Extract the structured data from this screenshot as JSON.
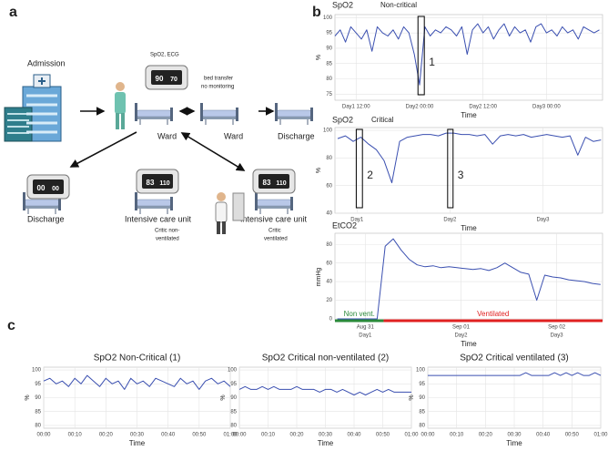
{
  "panel_labels": [
    "a",
    "b",
    "c"
  ],
  "diagram": {
    "admission": "Admission",
    "monitor_label": "SpO2, ECG",
    "transfer_note": [
      "bed transfer",
      "no monitoring"
    ],
    "ward": "Ward",
    "ward_transfer": "Ward",
    "discharge_right": "Discharge",
    "discharge_left": "Discharge",
    "icu_left": {
      "title": "Intensive care unit",
      "note": [
        "Critic non-",
        "ventilated"
      ]
    },
    "icu_right": {
      "title": "Intensive care unit",
      "note": [
        "Critic",
        "ventilated"
      ]
    },
    "monitors": [
      [
        "90",
        "70"
      ],
      [
        "00",
        "00"
      ],
      [
        "83",
        "110"
      ],
      [
        "83",
        "110"
      ]
    ]
  },
  "chart_data": [
    {
      "type": "line",
      "title": "SpO2",
      "subtitle": "Non-critical",
      "xlabel": "Time",
      "ylabel": "%",
      "color": "#3a4fb0",
      "grid": true,
      "x": [
        8,
        9,
        10,
        11,
        12,
        13,
        14,
        15,
        16,
        17,
        18,
        19,
        20,
        21,
        22,
        23,
        24,
        25,
        26,
        27,
        28,
        29,
        30,
        31,
        32,
        33,
        34,
        35,
        36,
        37,
        38,
        39,
        40,
        41,
        42,
        43,
        44,
        45,
        46,
        47,
        48,
        49,
        50,
        51,
        52,
        53,
        54,
        55,
        56,
        57,
        58
      ],
      "values": [
        94,
        96,
        92,
        97,
        95,
        93,
        96,
        89,
        97,
        95,
        94,
        96,
        93,
        97,
        95,
        88,
        78,
        97,
        94,
        96,
        95,
        97,
        96,
        94,
        97,
        88,
        96,
        98,
        95,
        97,
        93,
        96,
        98,
        94,
        97,
        95,
        96,
        92,
        97,
        98,
        95,
        96,
        94,
        97,
        95,
        96,
        93,
        97,
        96,
        95,
        96
      ],
      "xlim": [
        8,
        58.6
      ],
      "ylim": [
        73,
        101
      ],
      "yticks": [
        75,
        80,
        85,
        90,
        95,
        100
      ],
      "xticks": [
        {
          "value": 12,
          "label": "Day1 12:00"
        },
        {
          "value": 24,
          "label": "Day2 00:00"
        },
        {
          "value": 36,
          "label": "Day2 12:00"
        },
        {
          "value": 48,
          "label": "Day3 00:00"
        }
      ],
      "annotations": [
        {
          "text": "1",
          "x0": 23.7,
          "x1": 24.9
        }
      ]
    },
    {
      "type": "line",
      "title": "SpO2",
      "subtitle": "Critical",
      "xlabel": "Time",
      "ylabel": "%",
      "color": "#3a4fb0",
      "grid": true,
      "x": [
        -5,
        -3,
        -1,
        1,
        3,
        5,
        7,
        9,
        11,
        13,
        15,
        17,
        19,
        21,
        23,
        25,
        27,
        29,
        31,
        33,
        35,
        37,
        39,
        41,
        43,
        45,
        47,
        49,
        51,
        53,
        55,
        57,
        59,
        61,
        63
      ],
      "values": [
        94,
        96,
        92,
        95,
        90,
        86,
        78,
        62,
        92,
        95,
        96,
        97,
        97,
        96,
        98,
        98,
        97,
        97,
        96,
        97,
        90,
        96,
        97,
        96,
        97,
        95,
        96,
        97,
        96,
        95,
        96,
        82,
        95,
        92,
        93
      ],
      "xlim": [
        -5.7,
        63.4
      ],
      "ylim": [
        40,
        102
      ],
      "yticks": [
        40,
        60,
        80,
        100
      ],
      "xticks": [
        {
          "value": 0,
          "label": "Day1"
        },
        {
          "value": 24,
          "label": "Day2"
        },
        {
          "value": 48,
          "label": "Day3"
        }
      ],
      "annotations": [
        {
          "text": "2",
          "x0": -0.2,
          "x1": 1.4
        },
        {
          "text": "3",
          "x0": 23.4,
          "x1": 24.8
        }
      ]
    },
    {
      "type": "line",
      "title": "EtCO2",
      "xlabel": "Time",
      "ylabel": "mmHg",
      "color": "#3a4fb0",
      "grid": true,
      "x": [
        -7,
        -5,
        -3,
        -1,
        1,
        3,
        5,
        7,
        9,
        11,
        13,
        15,
        17,
        19,
        21,
        23,
        25,
        27,
        29,
        31,
        33,
        35,
        37,
        39,
        41,
        43,
        45,
        47,
        49,
        51,
        53,
        55,
        57,
        59
      ],
      "values": [
        0,
        0,
        0,
        0,
        0,
        0,
        78,
        86,
        74,
        64,
        58,
        56,
        57,
        55,
        56,
        55,
        54,
        53,
        54,
        52,
        55,
        60,
        55,
        50,
        48,
        20,
        47,
        45,
        44,
        42,
        41,
        40,
        38,
        37
      ],
      "xlim": [
        -7.6,
        59.5
      ],
      "ylim": [
        -2,
        92
      ],
      "yticks": [
        0,
        20,
        40,
        60,
        80
      ],
      "xticks": [
        {
          "value": 0,
          "label": "Aug 31",
          "sublabel": "Day1"
        },
        {
          "value": 24,
          "label": "Sep 01",
          "sublabel": "Day2"
        },
        {
          "value": 48,
          "label": "Sep 02",
          "sublabel": "Day3"
        }
      ],
      "regions": [
        {
          "text": "Non vent.",
          "color": "#2a8a3a",
          "x0": -7.6,
          "x1": 4.6
        },
        {
          "text": "Ventilated",
          "color": "#e02020",
          "x0": 4.6,
          "x1": 59.5
        }
      ]
    },
    {
      "type": "line",
      "title": "SpO2 Non-Critical (1)",
      "xlabel": "Time",
      "ylabel": "%",
      "color": "#3a4fb0",
      "grid": true,
      "x": [
        0,
        2,
        4,
        6,
        8,
        10,
        12,
        14,
        16,
        18,
        20,
        22,
        24,
        26,
        28,
        30,
        32,
        34,
        36,
        38,
        40,
        42,
        44,
        46,
        48,
        50,
        52,
        54,
        56,
        58,
        60
      ],
      "values": [
        96,
        97,
        95,
        96,
        94,
        97,
        95,
        98,
        96,
        94,
        97,
        95,
        96,
        93,
        97,
        95,
        96,
        94,
        97,
        96,
        95,
        94,
        97,
        95,
        96,
        93,
        96,
        97,
        95,
        96,
        94
      ],
      "xlim": [
        0,
        60
      ],
      "ylim": [
        79,
        101
      ],
      "yticks": [
        80,
        85,
        90,
        95,
        100
      ],
      "xticks": [
        {
          "value": 0,
          "label": "00:00"
        },
        {
          "value": 10,
          "label": "00:10"
        },
        {
          "value": 20,
          "label": "00:20"
        },
        {
          "value": 30,
          "label": "00:30"
        },
        {
          "value": 40,
          "label": "00:40"
        },
        {
          "value": 50,
          "label": "00:50"
        },
        {
          "value": 60,
          "label": "01:00"
        }
      ]
    },
    {
      "type": "line",
      "title": "SpO2 Critical non-ventilated (2)",
      "xlabel": "Time",
      "ylabel": "%",
      "color": "#3a4fb0",
      "grid": true,
      "x": [
        0,
        2,
        4,
        6,
        8,
        10,
        12,
        14,
        16,
        18,
        20,
        22,
        24,
        26,
        28,
        30,
        32,
        34,
        36,
        38,
        40,
        42,
        44,
        46,
        48,
        50,
        52,
        54,
        56,
        58,
        60
      ],
      "values": [
        93,
        94,
        93,
        93,
        94,
        93,
        94,
        93,
        93,
        93,
        94,
        93,
        93,
        93,
        92,
        93,
        93,
        92,
        93,
        92,
        91,
        92,
        91,
        92,
        93,
        92,
        93,
        92,
        92,
        92,
        92
      ],
      "xlim": [
        0,
        60
      ],
      "ylim": [
        79,
        101
      ],
      "yticks": [
        80,
        85,
        90,
        95,
        100
      ],
      "xticks": [
        {
          "value": 0,
          "label": "00:00"
        },
        {
          "value": 10,
          "label": "00:10"
        },
        {
          "value": 20,
          "label": "00:20"
        },
        {
          "value": 30,
          "label": "00:30"
        },
        {
          "value": 40,
          "label": "00:40"
        },
        {
          "value": 50,
          "label": "00:50"
        },
        {
          "value": 60,
          "label": "01:00"
        }
      ]
    },
    {
      "type": "line",
      "title": "SpO2 Critical ventilated (3)",
      "xlabel": "Time",
      "ylabel": "%",
      "color": "#3a4fb0",
      "grid": true,
      "x": [
        0,
        2,
        4,
        6,
        8,
        10,
        12,
        14,
        16,
        18,
        20,
        22,
        24,
        26,
        28,
        30,
        32,
        34,
        36,
        38,
        40,
        42,
        44,
        46,
        48,
        50,
        52,
        54,
        56,
        58,
        60
      ],
      "values": [
        98,
        98,
        98,
        98,
        98,
        98,
        98,
        98,
        98,
        98,
        98,
        98,
        98,
        98,
        98,
        98,
        98,
        99,
        98,
        98,
        98,
        98,
        99,
        98,
        99,
        98,
        99,
        98,
        98,
        99,
        98
      ],
      "xlim": [
        0,
        60
      ],
      "ylim": [
        79,
        101
      ],
      "yticks": [
        80,
        85,
        90,
        95,
        100
      ],
      "xticks": [
        {
          "value": 0,
          "label": "00:00"
        },
        {
          "value": 10,
          "label": "00:10"
        },
        {
          "value": 20,
          "label": "00:20"
        },
        {
          "value": 30,
          "label": "00:30"
        },
        {
          "value": 40,
          "label": "00:40"
        },
        {
          "value": 50,
          "label": "00:50"
        },
        {
          "value": 60,
          "label": "01:00"
        }
      ]
    }
  ]
}
